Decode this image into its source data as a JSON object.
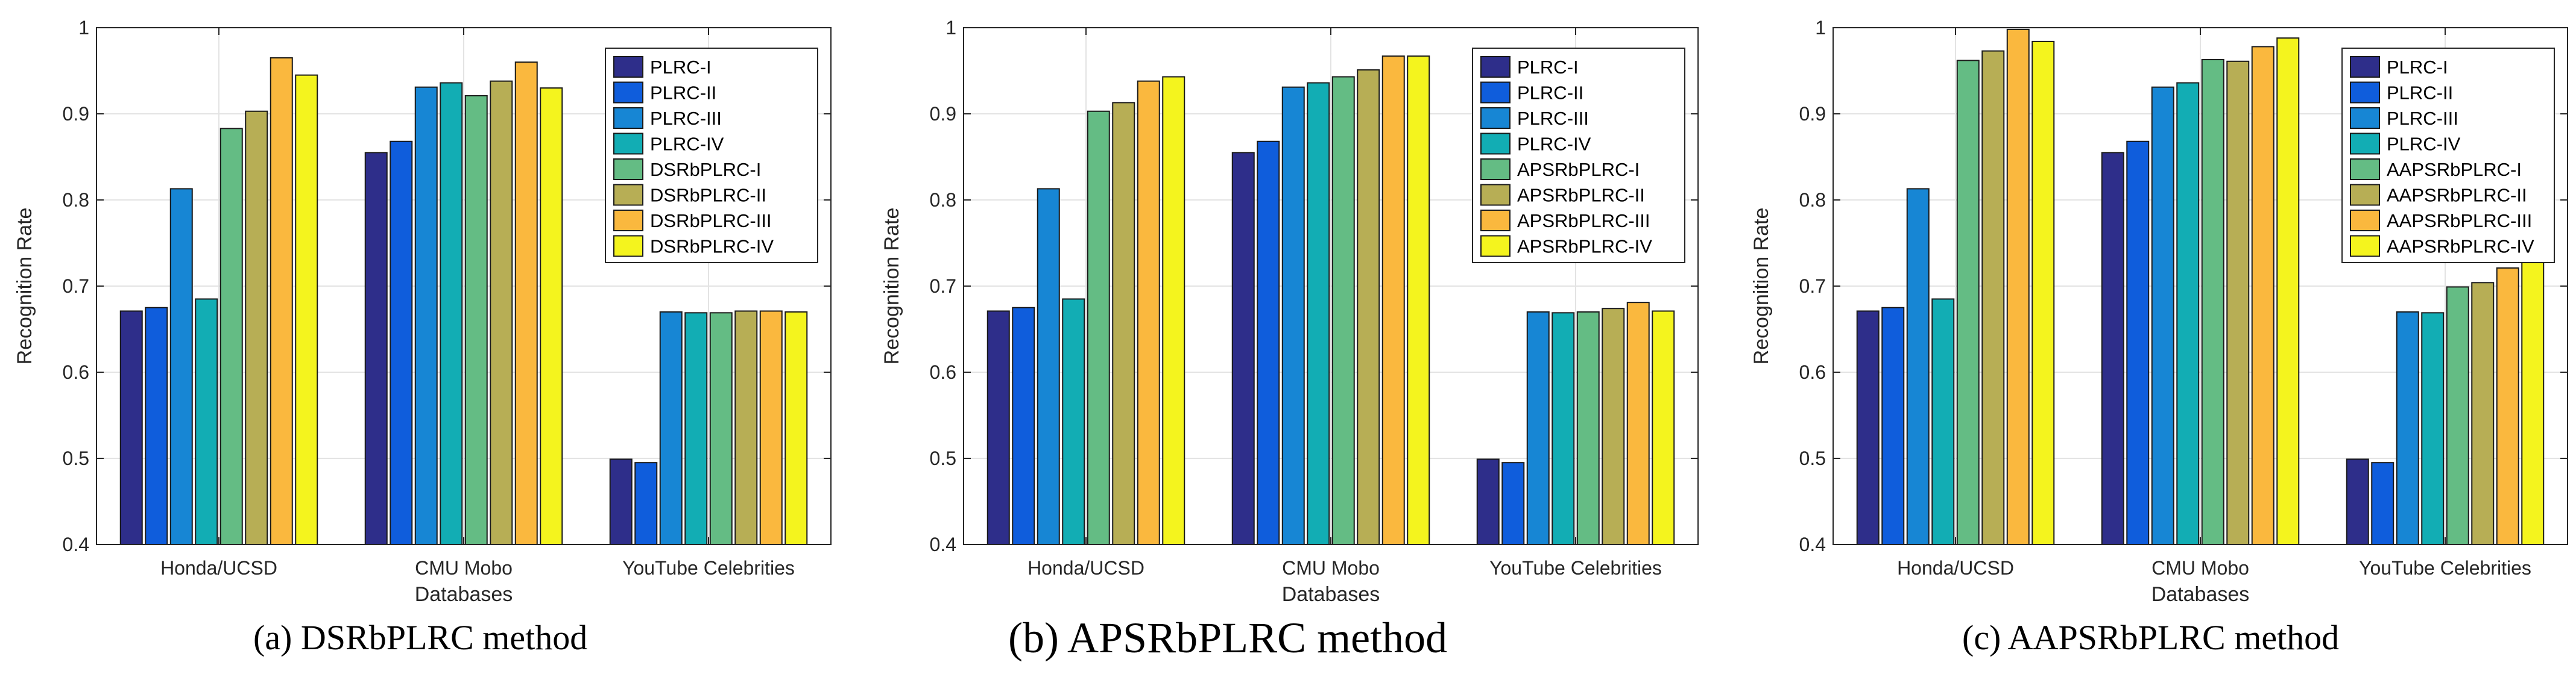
{
  "chart_data": [
    {
      "type": "bar",
      "caption": "(a) DSRbPLRC method",
      "categories": [
        "Honda/UCSD",
        "CMU Mobo",
        "YouTube Celebrities"
      ],
      "xlabel": "Databases",
      "ylabel": "Recognition Rate",
      "ylim": [
        0.4,
        1
      ],
      "yticks": [
        "0.4",
        "0.5",
        "0.6",
        "0.7",
        "0.8",
        "0.9",
        "1"
      ],
      "grid": true,
      "legend_position": "top-right",
      "series": [
        {
          "name": "PLRC-I",
          "color": "#2e2e8a",
          "values": [
            0.671,
            0.855,
            0.499
          ]
        },
        {
          "name": "PLRC-II",
          "color": "#0f5ddc",
          "values": [
            0.675,
            0.868,
            0.495
          ]
        },
        {
          "name": "PLRC-III",
          "color": "#1786d4",
          "values": [
            0.813,
            0.931,
            0.67
          ]
        },
        {
          "name": "PLRC-IV",
          "color": "#12adb4",
          "values": [
            0.685,
            0.936,
            0.669
          ]
        },
        {
          "name": "DSRbPLRC-I",
          "color": "#64bc84",
          "values": [
            0.883,
            0.921,
            0.669
          ]
        },
        {
          "name": "DSRbPLRC-II",
          "color": "#b7ae55",
          "values": [
            0.903,
            0.938,
            0.671
          ]
        },
        {
          "name": "DSRbPLRC-III",
          "color": "#fab83e",
          "values": [
            0.965,
            0.96,
            0.671
          ]
        },
        {
          "name": "DSRbPLRC-IV",
          "color": "#f4f41e",
          "values": [
            0.945,
            0.93,
            0.67
          ]
        }
      ]
    },
    {
      "type": "bar",
      "caption": "(b) APSRbPLRC method",
      "categories": [
        "Honda/UCSD",
        "CMU Mobo",
        "YouTube Celebrities"
      ],
      "xlabel": "Databases",
      "ylabel": "Recognition Rate",
      "ylim": [
        0.4,
        1
      ],
      "yticks": [
        "0.4",
        "0.5",
        "0.6",
        "0.7",
        "0.8",
        "0.9",
        "1"
      ],
      "grid": true,
      "legend_position": "top-right",
      "series": [
        {
          "name": "PLRC-I",
          "color": "#2e2e8a",
          "values": [
            0.671,
            0.855,
            0.499
          ]
        },
        {
          "name": "PLRC-II",
          "color": "#0f5ddc",
          "values": [
            0.675,
            0.868,
            0.495
          ]
        },
        {
          "name": "PLRC-III",
          "color": "#1786d4",
          "values": [
            0.813,
            0.931,
            0.67
          ]
        },
        {
          "name": "PLRC-IV",
          "color": "#12adb4",
          "values": [
            0.685,
            0.936,
            0.669
          ]
        },
        {
          "name": "APSRbPLRC-I",
          "color": "#64bc84",
          "values": [
            0.903,
            0.943,
            0.67
          ]
        },
        {
          "name": "APSRbPLRC-II",
          "color": "#b7ae55",
          "values": [
            0.913,
            0.951,
            0.674
          ]
        },
        {
          "name": "APSRbPLRC-III",
          "color": "#fab83e",
          "values": [
            0.938,
            0.967,
            0.681
          ]
        },
        {
          "name": "APSRbPLRC-IV",
          "color": "#f4f41e",
          "values": [
            0.943,
            0.967,
            0.671
          ]
        }
      ]
    },
    {
      "type": "bar",
      "caption": "(c) AAPSRbPLRC method",
      "categories": [
        "Honda/UCSD",
        "CMU Mobo",
        "YouTube Celebrities"
      ],
      "xlabel": "Databases",
      "ylabel": "Recognition Rate",
      "ylim": [
        0.4,
        1
      ],
      "yticks": [
        "0.4",
        "0.5",
        "0.6",
        "0.7",
        "0.8",
        "0.9",
        "1"
      ],
      "grid": true,
      "legend_position": "top-right",
      "series": [
        {
          "name": "PLRC-I",
          "color": "#2e2e8a",
          "values": [
            0.671,
            0.855,
            0.499
          ]
        },
        {
          "name": "PLRC-II",
          "color": "#0f5ddc",
          "values": [
            0.675,
            0.868,
            0.495
          ]
        },
        {
          "name": "PLRC-III",
          "color": "#1786d4",
          "values": [
            0.813,
            0.931,
            0.67
          ]
        },
        {
          "name": "PLRC-IV",
          "color": "#12adb4",
          "values": [
            0.685,
            0.936,
            0.669
          ]
        },
        {
          "name": "AAPSRbPLRC-I",
          "color": "#64bc84",
          "values": [
            0.962,
            0.963,
            0.699
          ]
        },
        {
          "name": "AAPSRbPLRC-II",
          "color": "#b7ae55",
          "values": [
            0.973,
            0.961,
            0.704
          ]
        },
        {
          "name": "AAPSRbPLRC-III",
          "color": "#fab83e",
          "values": [
            0.998,
            0.978,
            0.721
          ]
        },
        {
          "name": "AAPSRbPLRC-IV",
          "color": "#f4f41e",
          "values": [
            0.984,
            0.988,
            0.731
          ]
        }
      ]
    }
  ]
}
